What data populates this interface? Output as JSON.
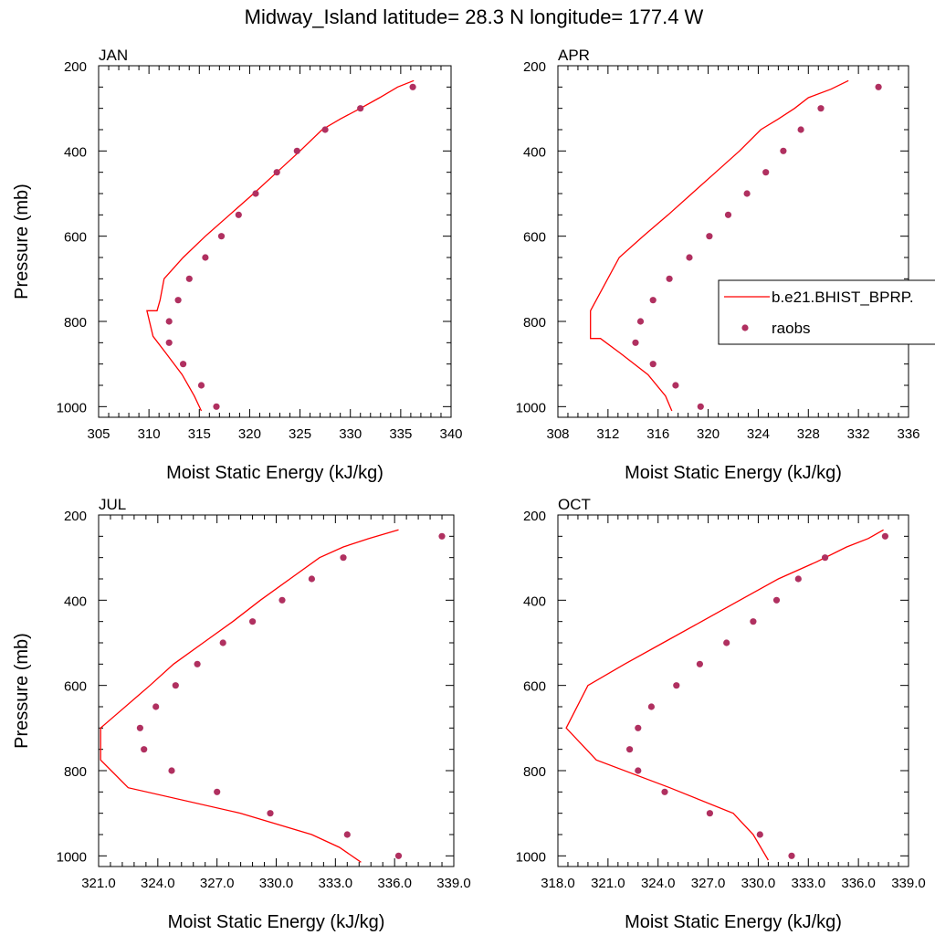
{
  "figure": {
    "title": "Midway_Island  latitude= 28.3 N longitude= 177.4 W"
  },
  "legend": {
    "entries": [
      {
        "label": "b.e21.BHIST_BPRP.",
        "kind": "line",
        "color": "#ff0000"
      },
      {
        "label": "raobs",
        "kind": "marker",
        "color": "#b03060"
      }
    ],
    "placement": "right-middle, inside APR panel"
  },
  "colors": {
    "model": "#ff0000",
    "obs": "#b03060"
  },
  "chart_data": [
    {
      "type": "line",
      "panel": "JAN",
      "xlabel": "Moist Static Energy (kJ/kg)",
      "ylabel": "Pressure (mb)",
      "xlim": [
        305,
        340
      ],
      "ylim": [
        200,
        1025
      ],
      "y_inverted": true,
      "xticks": [
        "305",
        "310",
        "315",
        "320",
        "325",
        "330",
        "335",
        "340"
      ],
      "xtick_values": [
        305,
        310,
        315,
        320,
        325,
        330,
        335,
        340
      ],
      "yticks": [
        "200",
        "400",
        "600",
        "800",
        "1000"
      ],
      "ytick_values": [
        200,
        400,
        600,
        800,
        1000
      ],
      "series": [
        {
          "name": "b.e21.BHIST_BPRP.",
          "type": "line",
          "x": [
            336.3,
            334.7,
            332.9,
            331.0,
            329.0,
            327.2,
            325.0,
            322.7,
            320.4,
            318.0,
            315.6,
            313.4,
            311.5,
            311.1,
            310.8,
            309.8,
            310.4,
            311.7,
            313.3,
            314.5,
            315.2
          ],
          "y": [
            235,
            250,
            275,
            300,
            325,
            350,
            400,
            450,
            500,
            550,
            600,
            650,
            700,
            750,
            775,
            775,
            835,
            875,
            925,
            975,
            1010
          ]
        },
        {
          "name": "raobs",
          "type": "scatter",
          "x": [
            336.2,
            331.0,
            327.5,
            324.7,
            322.7,
            320.6,
            318.9,
            317.2,
            315.6,
            314.0,
            312.9,
            312.0,
            312.0,
            313.4,
            315.2,
            316.7
          ],
          "y": [
            250,
            300,
            350,
            400,
            450,
            500,
            550,
            600,
            650,
            700,
            750,
            800,
            850,
            900,
            950,
            1000
          ]
        }
      ]
    },
    {
      "type": "line",
      "panel": "APR",
      "xlabel": "Moist Static Energy (kJ/kg)",
      "ylabel": "",
      "xlim": [
        308,
        336
      ],
      "ylim": [
        200,
        1025
      ],
      "y_inverted": true,
      "xticks": [
        "308",
        "312",
        "316",
        "320",
        "324",
        "328",
        "332",
        "336"
      ],
      "xtick_values": [
        308,
        312,
        316,
        320,
        324,
        328,
        332,
        336
      ],
      "yticks": [
        "200",
        "400",
        "600",
        "800",
        "1000"
      ],
      "ytick_values": [
        200,
        400,
        600,
        800,
        1000
      ],
      "series": [
        {
          "name": "b.e21.BHIST_BPRP.",
          "type": "line",
          "x": [
            331.2,
            329.8,
            328.0,
            326.9,
            325.6,
            324.2,
            322.5,
            320.6,
            318.7,
            316.8,
            314.8,
            312.9,
            310.6,
            310.6,
            311.4,
            313.0,
            315.2,
            316.6,
            317.1
          ],
          "y": [
            235,
            255,
            275,
            300,
            325,
            350,
            400,
            450,
            500,
            550,
            600,
            650,
            775,
            840,
            840,
            875,
            925,
            975,
            1010
          ]
        },
        {
          "name": "raobs",
          "type": "scatter",
          "x": [
            333.6,
            329.0,
            327.4,
            326.0,
            324.6,
            323.1,
            321.6,
            320.1,
            318.5,
            316.9,
            315.6,
            314.6,
            314.2,
            315.6,
            317.4,
            319.4
          ],
          "y": [
            250,
            300,
            350,
            400,
            450,
            500,
            550,
            600,
            650,
            700,
            750,
            800,
            850,
            900,
            950,
            1000
          ]
        }
      ]
    },
    {
      "type": "line",
      "panel": "JUL",
      "xlabel": "Moist Static Energy (kJ/kg)",
      "ylabel": "Pressure (mb)",
      "xlim": [
        321.0,
        339.0
      ],
      "ylim": [
        200,
        1025
      ],
      "y_inverted": true,
      "xticks": [
        "321.0",
        "324.0",
        "327.0",
        "330.0",
        "333.0",
        "336.0",
        "339.0"
      ],
      "xtick_values": [
        321,
        324,
        327,
        330,
        333,
        336,
        339
      ],
      "yticks": [
        "200",
        "400",
        "600",
        "800",
        "1000"
      ],
      "ytick_values": [
        200,
        400,
        600,
        800,
        1000
      ],
      "series": [
        {
          "name": "b.e21.BHIST_BPRP.",
          "type": "line",
          "x": [
            336.2,
            334.7,
            333.4,
            332.2,
            330.7,
            329.2,
            327.8,
            326.3,
            324.8,
            323.6,
            321.1,
            321.1,
            322.5,
            328.2,
            331.8,
            333.2,
            334.3
          ],
          "y": [
            235,
            255,
            275,
            300,
            350,
            400,
            450,
            500,
            550,
            600,
            700,
            775,
            840,
            900,
            950,
            980,
            1015
          ]
        },
        {
          "name": "raobs",
          "type": "scatter",
          "x": [
            338.4,
            333.4,
            331.8,
            330.3,
            328.8,
            327.3,
            326.0,
            324.9,
            323.9,
            323.1,
            323.3,
            324.7,
            327.0,
            329.7,
            333.6,
            336.2
          ],
          "y": [
            250,
            300,
            350,
            400,
            450,
            500,
            550,
            600,
            650,
            700,
            750,
            800,
            850,
            900,
            950,
            1000
          ]
        }
      ]
    },
    {
      "type": "line",
      "panel": "OCT",
      "xlabel": "Moist Static Energy (kJ/kg)",
      "ylabel": "",
      "xlim": [
        318.0,
        339.0
      ],
      "ylim": [
        200,
        1025
      ],
      "y_inverted": true,
      "xticks": [
        "318.0",
        "321.0",
        "324.0",
        "327.0",
        "330.0",
        "333.0",
        "336.0",
        "339.0"
      ],
      "xtick_values": [
        318,
        321,
        324,
        327,
        330,
        333,
        336,
        339
      ],
      "yticks": [
        "200",
        "400",
        "600",
        "800",
        "1000"
      ],
      "ytick_values": [
        200,
        400,
        600,
        800,
        1000
      ],
      "series": [
        {
          "name": "b.e21.BHIST_BPRP.",
          "type": "line",
          "x": [
            337.5,
            336.6,
            335.3,
            333.5,
            331.2,
            328.9,
            326.6,
            324.3,
            322.0,
            319.8,
            318.5,
            320.3,
            324.7,
            328.5,
            329.7,
            330.6
          ],
          "y": [
            235,
            255,
            275,
            310,
            350,
            400,
            450,
            500,
            550,
            600,
            700,
            775,
            840,
            900,
            950,
            1010
          ]
        },
        {
          "name": "raobs",
          "type": "scatter",
          "x": [
            337.6,
            334.0,
            332.4,
            331.1,
            329.7,
            328.1,
            326.5,
            325.1,
            323.6,
            322.8,
            322.3,
            322.8,
            324.4,
            327.1,
            330.1,
            332.0
          ],
          "y": [
            250,
            300,
            350,
            400,
            450,
            500,
            550,
            600,
            650,
            700,
            750,
            800,
            850,
            900,
            950,
            1000
          ]
        }
      ]
    }
  ]
}
